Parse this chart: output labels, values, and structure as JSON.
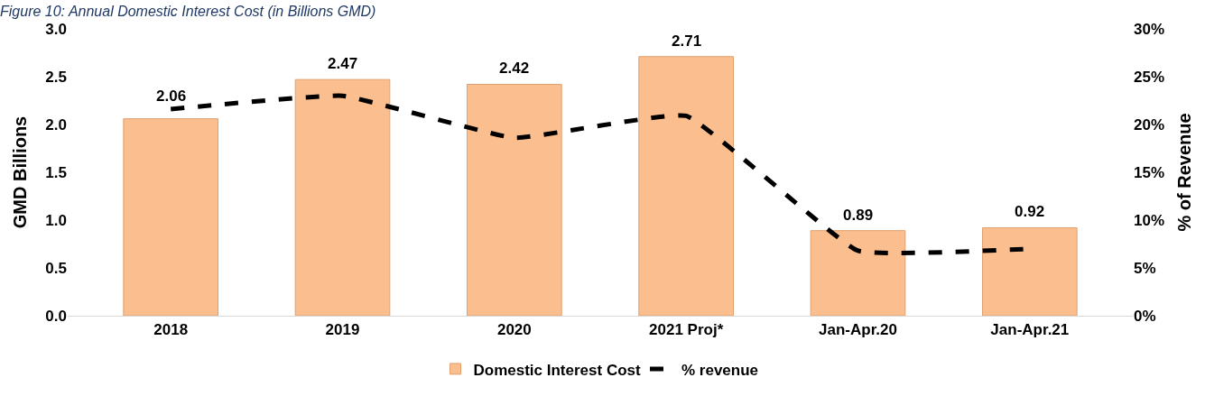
{
  "chart_data": {
    "type": "bar",
    "title": "Figure 10: Annual Domestic Interest Cost (in Billions GMD)",
    "ylabel": "GMD Billions",
    "y2label": "% of Revenue",
    "categories": [
      "2018",
      "2019",
      "2020",
      "2021 Proj*",
      "Jan-Apr.20",
      "Jan-Apr.21"
    ],
    "series": [
      {
        "name": "Domestic Interest Cost",
        "color": "#fbbe8e",
        "values": [
          2.06,
          2.47,
          2.42,
          2.71,
          0.89,
          0.92
        ],
        "data_labels": true
      },
      {
        "name": "% revenue",
        "type": "line",
        "axis": "y2",
        "color": "#000000",
        "line_style": "dashed",
        "marker": "none",
        "values": [
          21.6,
          23.0,
          18.6,
          20.9,
          6.8,
          7.0
        ]
      }
    ],
    "ylim": [
      0,
      3.0
    ],
    "yticks": [
      {
        "value": 0,
        "label": "0.0"
      },
      {
        "value": 0.5,
        "label": "0.5"
      },
      {
        "value": 1.0,
        "label": "1.0"
      },
      {
        "value": 1.5,
        "label": "1.5"
      },
      {
        "value": 2.0,
        "label": "2.0"
      },
      {
        "value": 2.5,
        "label": "2.5"
      },
      {
        "value": 3.0,
        "label": "3.0"
      }
    ],
    "y2lim": [
      0,
      30
    ],
    "y2ticks": [
      {
        "value": 0,
        "label": "0%"
      },
      {
        "value": 5,
        "label": "5%"
      },
      {
        "value": 10,
        "label": "10%"
      },
      {
        "value": 15,
        "label": "15%"
      },
      {
        "value": 20,
        "label": "20%"
      },
      {
        "value": 25,
        "label": "25%"
      },
      {
        "value": 30,
        "label": "30%"
      }
    ],
    "legend": "bottom"
  }
}
